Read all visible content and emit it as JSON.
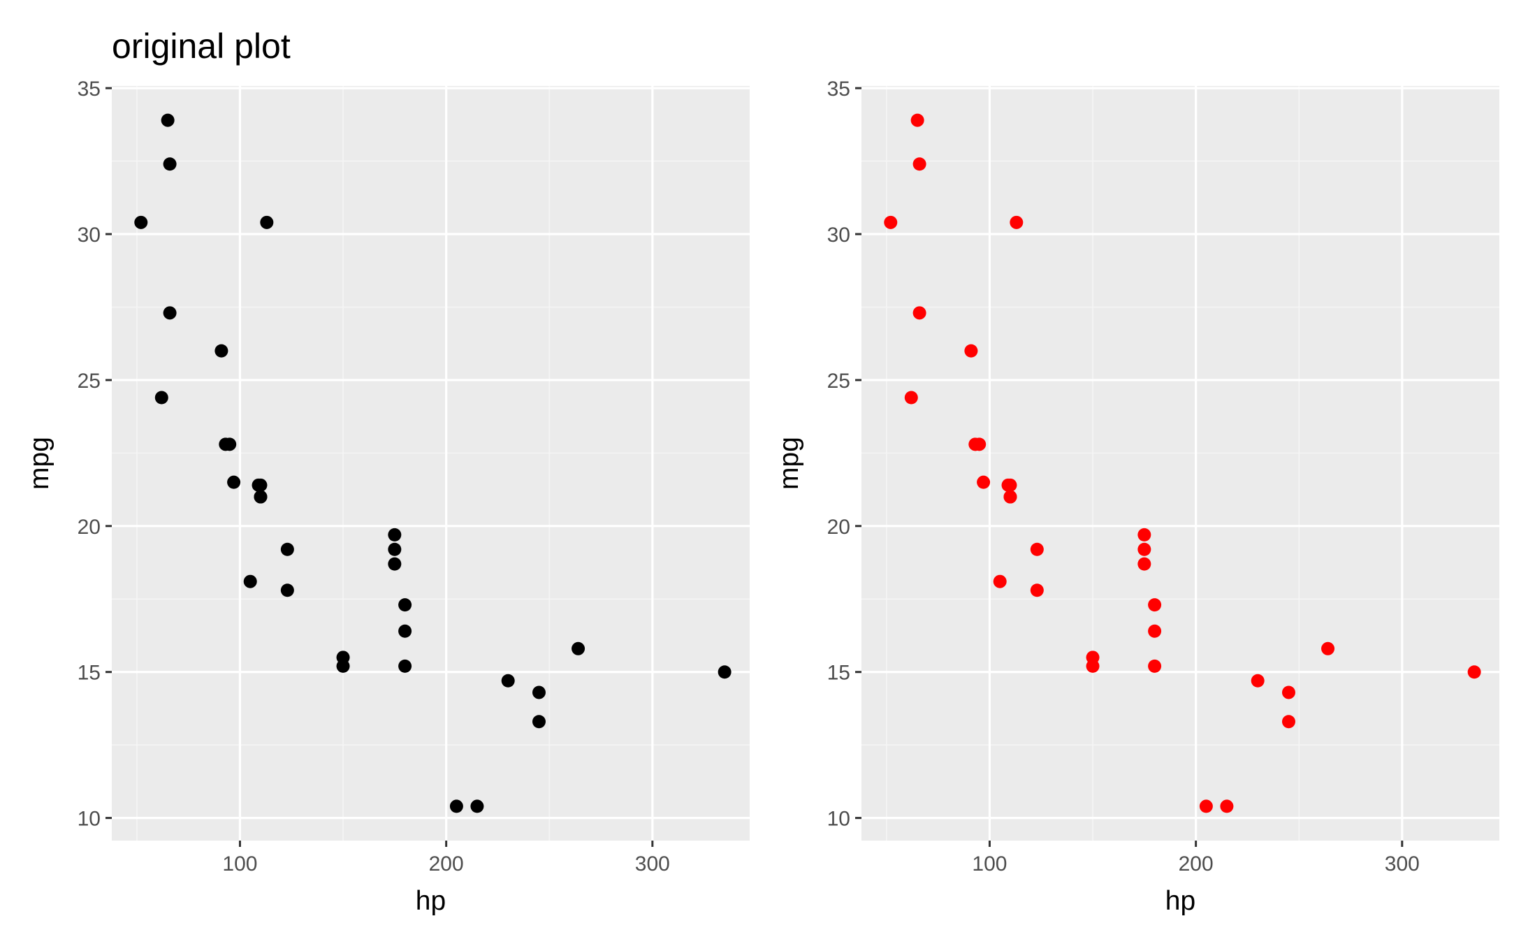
{
  "colors": {
    "panel_background": "#ebebeb",
    "grid_major": "#ffffff",
    "grid_minor": "#f5f5f5",
    "tick_mark": "#333333",
    "tick_label": "#4d4d4d"
  },
  "chart_data": [
    {
      "type": "scatter",
      "title": "original plot",
      "xlabel": "hp",
      "ylabel": "mpg",
      "xlim": [
        37.85,
        347.15
      ],
      "ylim": [
        9.225,
        35.075
      ],
      "xticks": [
        100,
        200,
        300
      ],
      "xticks_minor": [
        50,
        150,
        250
      ],
      "yticks": [
        10,
        15,
        20,
        25,
        30,
        35
      ],
      "yticks_minor": [
        12.5,
        17.5,
        22.5,
        27.5,
        32.5
      ],
      "grid": true,
      "point_color": "#000000",
      "points": [
        {
          "x": 110,
          "y": 21.0
        },
        {
          "x": 110,
          "y": 21.0
        },
        {
          "x": 93,
          "y": 22.8
        },
        {
          "x": 110,
          "y": 21.4
        },
        {
          "x": 175,
          "y": 18.7
        },
        {
          "x": 105,
          "y": 18.1
        },
        {
          "x": 245,
          "y": 14.3
        },
        {
          "x": 62,
          "y": 24.4
        },
        {
          "x": 95,
          "y": 22.8
        },
        {
          "x": 123,
          "y": 19.2
        },
        {
          "x": 123,
          "y": 17.8
        },
        {
          "x": 180,
          "y": 16.4
        },
        {
          "x": 180,
          "y": 17.3
        },
        {
          "x": 180,
          "y": 15.2
        },
        {
          "x": 205,
          "y": 10.4
        },
        {
          "x": 215,
          "y": 10.4
        },
        {
          "x": 230,
          "y": 14.7
        },
        {
          "x": 66,
          "y": 32.4
        },
        {
          "x": 52,
          "y": 30.4
        },
        {
          "x": 65,
          "y": 33.9
        },
        {
          "x": 97,
          "y": 21.5
        },
        {
          "x": 150,
          "y": 15.5
        },
        {
          "x": 150,
          "y": 15.2
        },
        {
          "x": 245,
          "y": 13.3
        },
        {
          "x": 175,
          "y": 19.2
        },
        {
          "x": 66,
          "y": 27.3
        },
        {
          "x": 91,
          "y": 26.0
        },
        {
          "x": 113,
          "y": 30.4
        },
        {
          "x": 264,
          "y": 15.8
        },
        {
          "x": 175,
          "y": 19.7
        },
        {
          "x": 335,
          "y": 15.0
        },
        {
          "x": 109,
          "y": 21.4
        }
      ]
    },
    {
      "type": "scatter",
      "title": "",
      "xlabel": "hp",
      "ylabel": "mpg",
      "xlim": [
        37.85,
        347.15
      ],
      "ylim": [
        9.225,
        35.075
      ],
      "xticks": [
        100,
        200,
        300
      ],
      "xticks_minor": [
        50,
        150,
        250
      ],
      "yticks": [
        10,
        15,
        20,
        25,
        30,
        35
      ],
      "yticks_minor": [
        12.5,
        17.5,
        22.5,
        27.5,
        32.5
      ],
      "grid": true,
      "point_color": "#ff0000",
      "points": [
        {
          "x": 110,
          "y": 21.0
        },
        {
          "x": 110,
          "y": 21.0
        },
        {
          "x": 93,
          "y": 22.8
        },
        {
          "x": 110,
          "y": 21.4
        },
        {
          "x": 175,
          "y": 18.7
        },
        {
          "x": 105,
          "y": 18.1
        },
        {
          "x": 245,
          "y": 14.3
        },
        {
          "x": 62,
          "y": 24.4
        },
        {
          "x": 95,
          "y": 22.8
        },
        {
          "x": 123,
          "y": 19.2
        },
        {
          "x": 123,
          "y": 17.8
        },
        {
          "x": 180,
          "y": 16.4
        },
        {
          "x": 180,
          "y": 17.3
        },
        {
          "x": 180,
          "y": 15.2
        },
        {
          "x": 205,
          "y": 10.4
        },
        {
          "x": 215,
          "y": 10.4
        },
        {
          "x": 230,
          "y": 14.7
        },
        {
          "x": 66,
          "y": 32.4
        },
        {
          "x": 52,
          "y": 30.4
        },
        {
          "x": 65,
          "y": 33.9
        },
        {
          "x": 97,
          "y": 21.5
        },
        {
          "x": 150,
          "y": 15.5
        },
        {
          "x": 150,
          "y": 15.2
        },
        {
          "x": 245,
          "y": 13.3
        },
        {
          "x": 175,
          "y": 19.2
        },
        {
          "x": 66,
          "y": 27.3
        },
        {
          "x": 91,
          "y": 26.0
        },
        {
          "x": 113,
          "y": 30.4
        },
        {
          "x": 264,
          "y": 15.8
        },
        {
          "x": 175,
          "y": 19.7
        },
        {
          "x": 335,
          "y": 15.0
        },
        {
          "x": 109,
          "y": 21.4
        }
      ]
    }
  ]
}
